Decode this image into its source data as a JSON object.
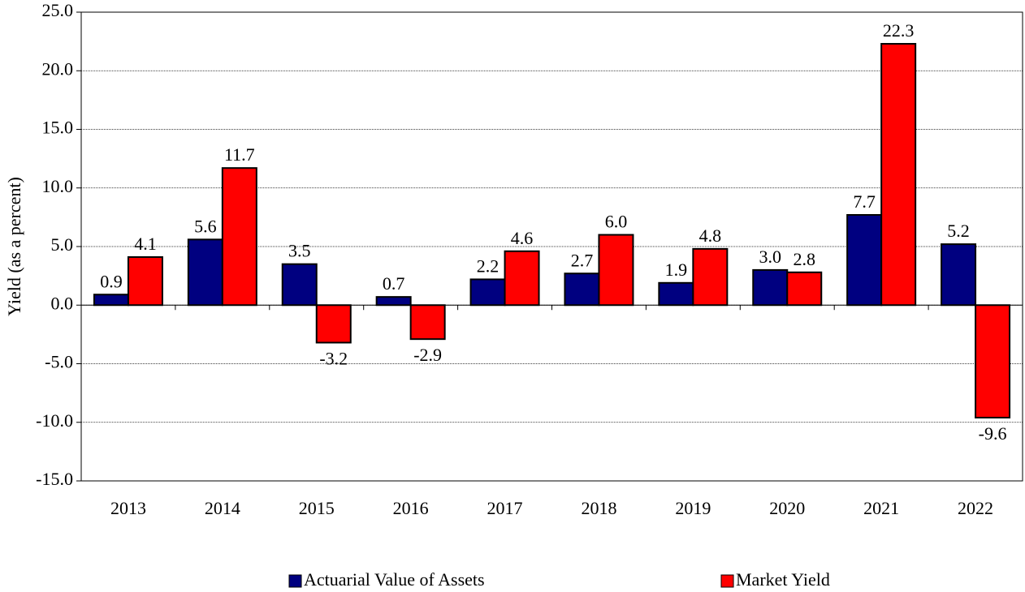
{
  "chart_data": {
    "type": "bar",
    "y_label": "Yield (as a percent)",
    "categories": [
      "2013",
      "2014",
      "2015",
      "2016",
      "2017",
      "2018",
      "2019",
      "2020",
      "2021",
      "2022"
    ],
    "series": [
      {
        "name": "Actuarial Value of Assets",
        "color": "#000080",
        "values": [
          0.9,
          5.6,
          3.5,
          0.7,
          2.2,
          2.7,
          1.9,
          3.0,
          7.7,
          5.2
        ],
        "value_labels": [
          "0.9",
          "5.6",
          "3.5",
          "0.7",
          "2.2",
          "2.7",
          "1.9",
          "3.0",
          "7.7",
          "5.2"
        ]
      },
      {
        "name": "Market Yield",
        "color": "#ff0000",
        "values": [
          4.1,
          11.7,
          -3.2,
          -2.9,
          4.6,
          6.0,
          4.8,
          2.8,
          22.3,
          -9.6
        ],
        "value_labels": [
          "4.1",
          "11.7",
          "-3.2",
          "-2.9",
          "4.6",
          "6.0",
          "4.8",
          "2.8",
          "22.3",
          "-9.6"
        ]
      }
    ],
    "ylim": [
      -15,
      25
    ],
    "yticks": [
      {
        "value": -15,
        "label": "-15.0"
      },
      {
        "value": -10,
        "label": "-10.0"
      },
      {
        "value": -5,
        "label": "-5.0"
      },
      {
        "value": 0,
        "label": "0.0"
      },
      {
        "value": 5,
        "label": "5.0"
      },
      {
        "value": 10,
        "label": "10.0"
      },
      {
        "value": 15,
        "label": "15.0"
      },
      {
        "value": 20,
        "label": "20.0"
      },
      {
        "value": 25,
        "label": "25.0"
      }
    ],
    "grid": true,
    "legend": "bottom"
  }
}
